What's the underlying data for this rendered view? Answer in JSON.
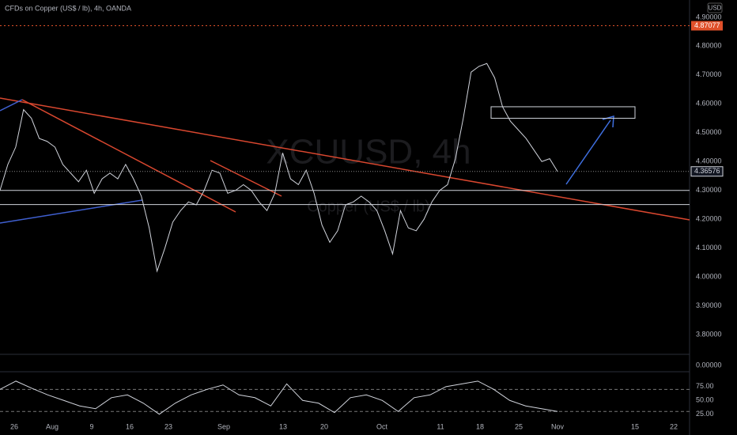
{
  "header": {
    "title": "CFDs on Copper (US$ / lb), 4h, OANDA",
    "currency": "USD",
    "watermark": "XCUUSD, 4h",
    "watermark_sub": "Copper (US$ / lb)"
  },
  "chart_data": [
    {
      "type": "line",
      "color": "#d1d4dc",
      "values": [
        4.3,
        4.39,
        4.45,
        4.58,
        4.55,
        4.48,
        4.47,
        4.45,
        4.39,
        4.36,
        4.33,
        4.37,
        4.29,
        4.34,
        4.36,
        4.34,
        4.39,
        4.34,
        4.28,
        4.17,
        4.02,
        4.1,
        4.19,
        4.23,
        4.26,
        4.25,
        4.3,
        4.37,
        4.36,
        4.29,
        4.3,
        4.32,
        4.3,
        4.26,
        4.23,
        4.29,
        4.43,
        4.34,
        4.32,
        4.37,
        4.29,
        4.18,
        4.12,
        4.16,
        4.25,
        4.26,
        4.28,
        4.26,
        4.23,
        4.16,
        4.08,
        4.23,
        4.17,
        4.16,
        4.2,
        4.26,
        4.3,
        4.32,
        4.41,
        4.55,
        4.71,
        4.73,
        4.74,
        4.69,
        4.59,
        4.54,
        4.51,
        4.48,
        4.44,
        4.4,
        4.41,
        4.36576
      ],
      "ylim": [
        3.74,
        4.96
      ],
      "yticks": [
        {
          "value": 4.9,
          "label": "4.90000"
        },
        {
          "value": 4.8,
          "label": "4.80000"
        },
        {
          "value": 4.7,
          "label": "4.70000"
        },
        {
          "value": 4.6,
          "label": "4.60000"
        },
        {
          "value": 4.5,
          "label": "4.50000"
        },
        {
          "value": 4.4,
          "label": "4.40000"
        },
        {
          "value": 4.3,
          "label": "4.30000"
        },
        {
          "value": 4.2,
          "label": "4.20000"
        },
        {
          "value": 4.1,
          "label": "4.10000"
        },
        {
          "value": 4.0,
          "label": "4.00000"
        },
        {
          "value": 3.9,
          "label": "3.90000"
        },
        {
          "value": 3.8,
          "label": "3.80000"
        }
      ],
      "x_labels": [
        "26",
        "Aug",
        "9",
        "16",
        "23",
        "Sep",
        "13",
        "20",
        "Oct",
        "11",
        "18",
        "25",
        "Nov",
        "15",
        "22"
      ],
      "alert_level": 4.87077,
      "levels": [
        4.3,
        4.251
      ],
      "zone": [
        4.55,
        4.59
      ],
      "volume_tick": {
        "value": 0,
        "label": "0.00000"
      }
    },
    {
      "type": "line",
      "color": "#d1d4dc",
      "values": [
        70,
        85,
        72,
        60,
        50,
        40,
        35,
        55,
        60,
        45,
        25,
        45,
        60,
        70,
        78,
        60,
        55,
        40,
        80,
        50,
        45,
        28,
        55,
        60,
        50,
        30,
        55,
        60,
        75,
        80,
        85,
        70,
        50,
        40,
        35,
        30
      ],
      "ylim": [
        16,
        102
      ],
      "yticks": [
        {
          "value": 75,
          "label": "75.00"
        },
        {
          "value": 50,
          "label": "50.00"
        },
        {
          "value": 25,
          "label": "25.00"
        }
      ],
      "bands": [
        70,
        30
      ]
    }
  ]
}
